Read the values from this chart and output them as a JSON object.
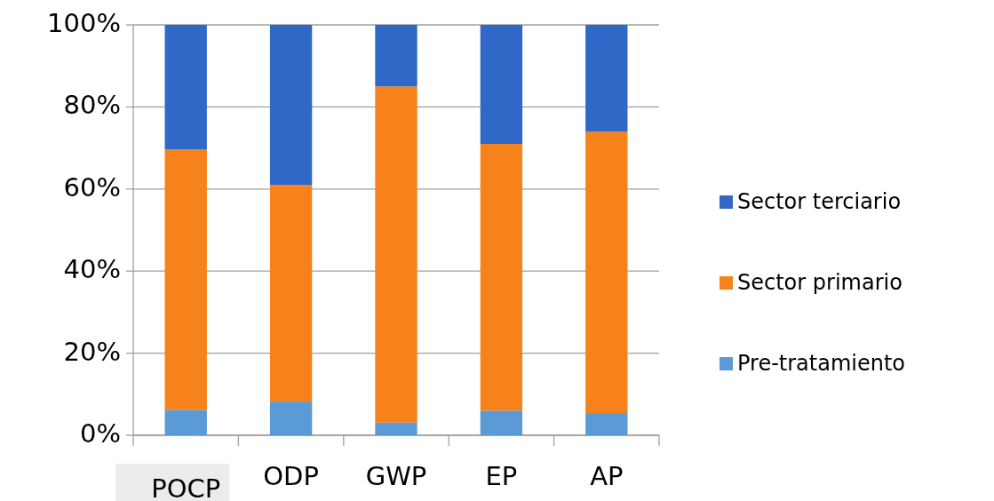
{
  "chart_data": {
    "type": "bar",
    "stacked": true,
    "categories": [
      "POCP",
      "ODP",
      "GWP",
      "EP",
      "AP"
    ],
    "series": [
      {
        "name": "Pre-tratamiento",
        "color": "#5b9bd5",
        "values": [
          6.2,
          8.2,
          3.1,
          6,
          5.4
        ]
      },
      {
        "name": "Sector primario",
        "color": "#f7821b",
        "values": [
          63.4,
          52.8,
          81.9,
          65,
          68.6
        ]
      },
      {
        "name": "Sector terciario",
        "color": "#3068c8",
        "values": [
          30.4,
          39,
          15,
          29,
          26
        ]
      }
    ],
    "ylim": [
      0,
      100
    ],
    "yticks": [
      {
        "value": 0,
        "label": "0%"
      },
      {
        "value": 20,
        "label": "20%"
      },
      {
        "value": 40,
        "label": "40%"
      },
      {
        "value": 60,
        "label": "60%"
      },
      {
        "value": 80,
        "label": "80%"
      },
      {
        "value": 100,
        "label": "100%"
      }
    ],
    "grid": "y",
    "legend": "right"
  }
}
